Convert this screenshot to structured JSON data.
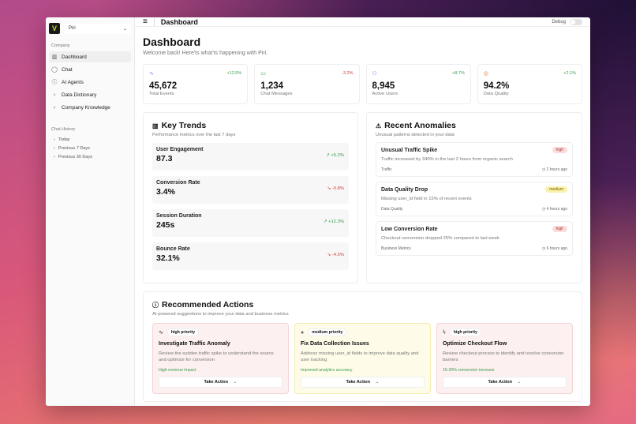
{
  "sidebar": {
    "workspace": "Piri",
    "logo_letter": "V",
    "company_label": "Company",
    "items": [
      {
        "label": "Dashboard",
        "icon": "bar-chart-icon"
      },
      {
        "label": "Chat",
        "icon": "chat-icon"
      },
      {
        "label": "AI Agents",
        "icon": "agent-icon"
      },
      {
        "label": "Data Dictionary",
        "icon": "chevron-right-icon"
      },
      {
        "label": "Company Knowledge",
        "icon": "chevron-right-icon"
      }
    ],
    "history_label": "Chat History",
    "history": [
      "Today",
      "Previous 7 Days",
      "Previous 30 Days"
    ]
  },
  "header": {
    "title": "Dashboard",
    "debug_label": "Debug",
    "debug_on": false
  },
  "page": {
    "title": "Dashboard",
    "subtitle": "Welcome back! Here'ts what'ts happening with Piri."
  },
  "stats": [
    {
      "value": "45,672",
      "label": "Total Events",
      "change": "+12.5%",
      "trend": "up",
      "icon": "activity-icon",
      "color": "#7b7ff0"
    },
    {
      "value": "1,234",
      "label": "Chat Messages",
      "change": "-3.2%",
      "trend": "down",
      "icon": "message-icon",
      "color": "#3a9a4a"
    },
    {
      "value": "8,945",
      "label": "Active Users",
      "change": "+8.7%",
      "trend": "up",
      "icon": "users-icon",
      "color": "#9b6be0"
    },
    {
      "value": "94.2%",
      "label": "Data Quality",
      "change": "+2.1%",
      "trend": "up",
      "icon": "database-icon",
      "color": "#e07a3a"
    }
  ],
  "trends": {
    "title": "Key Trends",
    "subtitle": "Performance metrics over the last 7 days",
    "items": [
      {
        "name": "User Engagement",
        "value": "87.3",
        "change": "+5.2%",
        "trend": "up"
      },
      {
        "name": "Conversion Rate",
        "value": "3.4%",
        "change": "-0.8%",
        "trend": "down"
      },
      {
        "name": "Session Duration",
        "value": "245s",
        "change": "+12.3%",
        "trend": "up"
      },
      {
        "name": "Bounce Rate",
        "value": "32.1%",
        "change": "-4.5%",
        "trend": "down"
      }
    ]
  },
  "anomalies": {
    "title": "Recent Anomalies",
    "subtitle": "Unusual patterns detected in your data",
    "items": [
      {
        "title": "Unusual Traffic Spike",
        "desc": "Traffic increased by 340% in the last 2 hours from organic search",
        "category": "Traffic",
        "time": "2 hours ago",
        "severity": "high"
      },
      {
        "title": "Data Quality Drop",
        "desc": "Missing user_id field in 15% of recent events",
        "category": "Data Quality",
        "time": "4 hours ago",
        "severity": "medium"
      },
      {
        "title": "Low Conversion Rate",
        "desc": "Checkout conversion dropped 25% compared to last week",
        "category": "Business Metrics",
        "time": "6 hours ago",
        "severity": "high"
      }
    ]
  },
  "actions": {
    "title": "Recommended Actions",
    "subtitle": "AI-powered suggestions to improve your data and business metrics",
    "button": "Take Action",
    "items": [
      {
        "priority": "high priority",
        "title": "Investigate Traffic Anomaly",
        "desc": "Review the sudden traffic spike to understand the source and optimize for conversion",
        "impact": "High revenue impact",
        "icon": "activity-icon"
      },
      {
        "priority": "medium priority",
        "title": "Fix Data Collection Issues",
        "desc": "Address missing user_id fields to improve data quality and user tracking",
        "impact": "Improved analytics accuracy",
        "icon": "circle-icon"
      },
      {
        "priority": "high priority",
        "title": "Optimize Checkout Flow",
        "desc": "Review checkout process to identify and resolve conversion barriers",
        "impact": "15-20% conversion increase",
        "icon": "zap-icon"
      }
    ]
  }
}
